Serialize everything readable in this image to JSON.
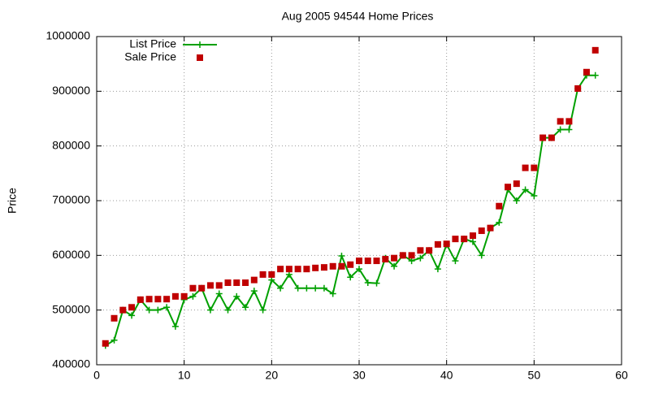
{
  "chart_data": {
    "type": "line-scatter",
    "title": "Aug 2005 94544 Home Prices",
    "y_label": "Price",
    "x": [
      1,
      2,
      3,
      4,
      5,
      6,
      7,
      8,
      9,
      10,
      11,
      12,
      13,
      14,
      15,
      16,
      17,
      18,
      19,
      20,
      21,
      22,
      23,
      24,
      25,
      26,
      27,
      28,
      29,
      30,
      31,
      32,
      33,
      34,
      35,
      36,
      37,
      38,
      39,
      40,
      41,
      42,
      43,
      44,
      45,
      46,
      47,
      48,
      49,
      50,
      51,
      52,
      53,
      54,
      55,
      56,
      57
    ],
    "series": [
      {
        "name": "List Price",
        "color": "#00a000",
        "style": "linespoints",
        "values": [
          435000,
          445000,
          500000,
          490000,
          519000,
          500000,
          500000,
          505000,
          470000,
          519000,
          525000,
          540000,
          500000,
          530000,
          500000,
          525000,
          505000,
          535000,
          500000,
          555000,
          540000,
          565000,
          540000,
          540000,
          540000,
          540000,
          530000,
          599000,
          560000,
          575000,
          550000,
          549000,
          595000,
          580000,
          600000,
          590000,
          595000,
          609000,
          575000,
          620000,
          590000,
          630000,
          625000,
          600000,
          650000,
          660000,
          720000,
          700000,
          720000,
          709000,
          815000,
          815000,
          830000,
          830000,
          905000,
          929000,
          929000
        ]
      },
      {
        "name": "Sale Price",
        "color": "#c00000",
        "style": "points",
        "values": [
          439000,
          485000,
          500000,
          505000,
          519000,
          520000,
          520000,
          520000,
          525000,
          525000,
          540000,
          540000,
          545000,
          545000,
          550000,
          550000,
          550000,
          555000,
          565000,
          565000,
          575000,
          575000,
          575000,
          575000,
          577000,
          578000,
          580000,
          580000,
          583000,
          590000,
          590000,
          590000,
          593000,
          595000,
          600000,
          600000,
          609000,
          609000,
          620000,
          621000,
          630000,
          630000,
          636000,
          645000,
          650000,
          690000,
          725000,
          731000,
          760000,
          760000,
          815000,
          815000,
          845000,
          845000,
          905000,
          935000,
          975000
        ]
      }
    ],
    "xlim": [
      0,
      60
    ],
    "xticks": [
      0,
      10,
      20,
      30,
      40,
      50,
      60
    ],
    "ylim": [
      400000,
      1000000
    ],
    "yticks": [
      400000,
      500000,
      600000,
      700000,
      800000,
      900000,
      1000000
    ],
    "grid": true,
    "legend": "top-left"
  }
}
